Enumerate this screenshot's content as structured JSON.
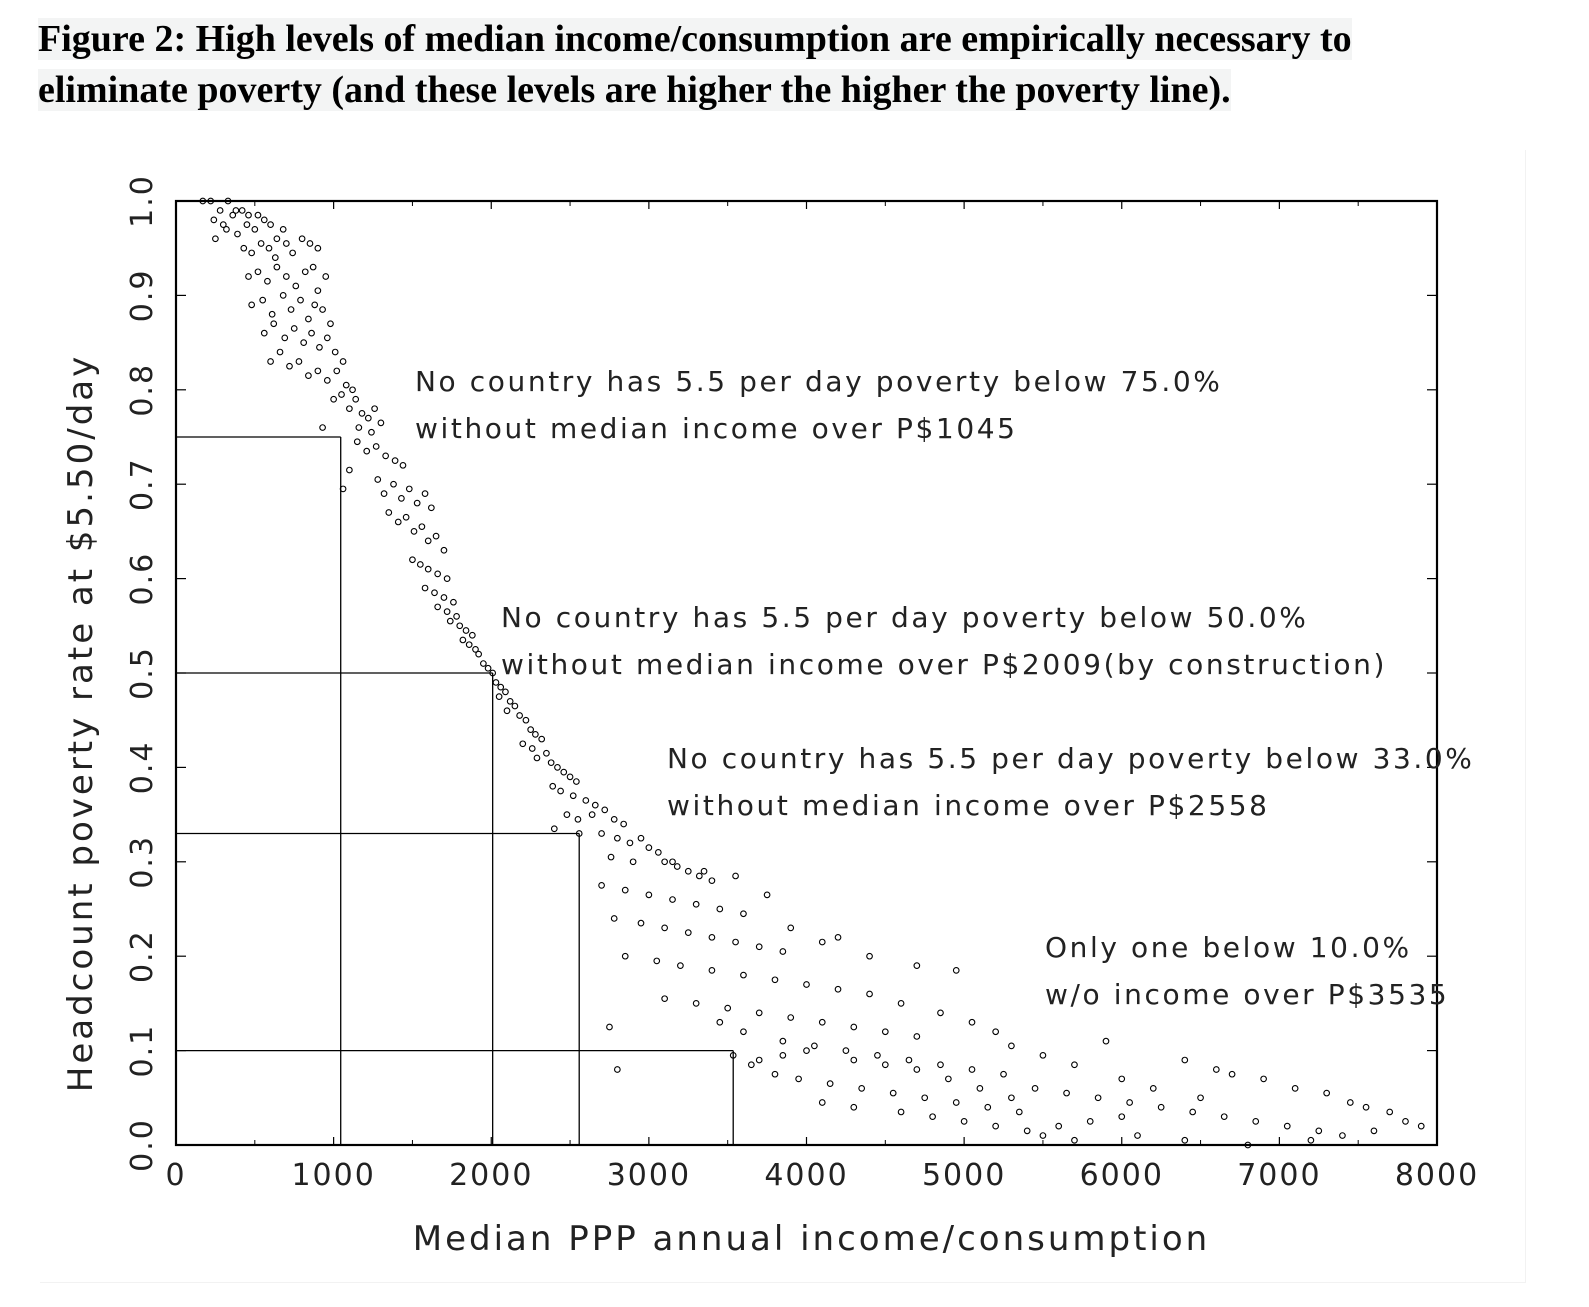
{
  "figure": {
    "title_line1": "Figure 2:  High levels of median income/consumption are empirically necessary to",
    "title_line2": "eliminate poverty (and these levels are higher the higher the poverty line)."
  },
  "chart_data": {
    "type": "scatter",
    "xlabel": "Median PPP annual income/consumption",
    "ylabel": "Headcount poverty rate at $5.50/day",
    "xlim": [
      0,
      8000
    ],
    "ylim": [
      0,
      1.0
    ],
    "x_ticks": [
      0,
      1000,
      2000,
      3000,
      4000,
      5000,
      6000,
      7000,
      8000
    ],
    "x_tick_labels": [
      "0",
      "1000",
      "2000",
      "3000",
      "4000",
      "5000",
      "6000",
      "7000",
      "8000"
    ],
    "y_ticks": [
      0,
      0.1,
      0.2,
      0.3,
      0.4,
      0.5,
      0.6,
      0.7,
      0.8,
      0.9,
      1.0
    ],
    "y_tick_labels": [
      "0.0",
      "0.1",
      "0.2",
      "0.3",
      "0.4",
      "0.5",
      "0.6",
      "0.7",
      "0.8",
      "0.9",
      "1.0"
    ],
    "thresholds": [
      {
        "poverty_rate": 0.75,
        "median_income": 1045,
        "line1": "No country has 5.5 per day poverty below 75.0%",
        "line2": "without median income over P$1045"
      },
      {
        "poverty_rate": 0.5,
        "median_income": 2009,
        "line1": "No country has 5.5 per day poverty below 50.0%",
        "line2": "without median income over P$2009(by construction)"
      },
      {
        "poverty_rate": 0.33,
        "median_income": 2558,
        "line1": "No country has 5.5 per day poverty below 33.0%",
        "line2": "without median income over P$2558"
      },
      {
        "poverty_rate": 0.1,
        "median_income": 3535,
        "line1": "Only one below 10.0%",
        "line2": "w/o income over P$3535"
      }
    ],
    "points": [
      [
        170,
        1.0
      ],
      [
        220,
        1.0
      ],
      [
        280,
        0.99
      ],
      [
        330,
        1.0
      ],
      [
        380,
        0.99
      ],
      [
        240,
        0.98
      ],
      [
        300,
        0.975
      ],
      [
        360,
        0.985
      ],
      [
        420,
        0.99
      ],
      [
        460,
        0.985
      ],
      [
        250,
        0.96
      ],
      [
        320,
        0.97
      ],
      [
        390,
        0.965
      ],
      [
        450,
        0.975
      ],
      [
        500,
        0.97
      ],
      [
        520,
        0.985
      ],
      [
        560,
        0.98
      ],
      [
        600,
        0.975
      ],
      [
        640,
        0.96
      ],
      [
        680,
        0.97
      ],
      [
        430,
        0.95
      ],
      [
        480,
        0.945
      ],
      [
        540,
        0.955
      ],
      [
        590,
        0.95
      ],
      [
        630,
        0.94
      ],
      [
        700,
        0.955
      ],
      [
        740,
        0.945
      ],
      [
        800,
        0.96
      ],
      [
        850,
        0.955
      ],
      [
        900,
        0.95
      ],
      [
        460,
        0.92
      ],
      [
        520,
        0.925
      ],
      [
        580,
        0.915
      ],
      [
        640,
        0.93
      ],
      [
        700,
        0.92
      ],
      [
        760,
        0.91
      ],
      [
        820,
        0.925
      ],
      [
        870,
        0.93
      ],
      [
        900,
        0.905
      ],
      [
        950,
        0.92
      ],
      [
        480,
        0.89
      ],
      [
        550,
        0.895
      ],
      [
        610,
        0.88
      ],
      [
        680,
        0.9
      ],
      [
        730,
        0.885
      ],
      [
        790,
        0.895
      ],
      [
        840,
        0.875
      ],
      [
        880,
        0.89
      ],
      [
        930,
        0.885
      ],
      [
        980,
        0.87
      ],
      [
        560,
        0.86
      ],
      [
        620,
        0.87
      ],
      [
        690,
        0.855
      ],
      [
        750,
        0.865
      ],
      [
        810,
        0.85
      ],
      [
        860,
        0.86
      ],
      [
        910,
        0.845
      ],
      [
        960,
        0.855
      ],
      [
        1010,
        0.84
      ],
      [
        1060,
        0.83
      ],
      [
        600,
        0.83
      ],
      [
        660,
        0.84
      ],
      [
        720,
        0.825
      ],
      [
        780,
        0.83
      ],
      [
        840,
        0.815
      ],
      [
        900,
        0.82
      ],
      [
        960,
        0.81
      ],
      [
        1020,
        0.82
      ],
      [
        1080,
        0.805
      ],
      [
        1120,
        0.8
      ],
      [
        1000,
        0.79
      ],
      [
        1050,
        0.795
      ],
      [
        1100,
        0.78
      ],
      [
        1140,
        0.79
      ],
      [
        1180,
        0.775
      ],
      [
        1220,
        0.77
      ],
      [
        1260,
        0.78
      ],
      [
        1300,
        0.765
      ],
      [
        1160,
        0.76
      ],
      [
        1240,
        0.755
      ],
      [
        930,
        0.76
      ],
      [
        1150,
        0.745
      ],
      [
        1210,
        0.735
      ],
      [
        1270,
        0.74
      ],
      [
        1330,
        0.73
      ],
      [
        1390,
        0.725
      ],
      [
        1440,
        0.72
      ],
      [
        1100,
        0.715
      ],
      [
        1060,
        0.695
      ],
      [
        1280,
        0.705
      ],
      [
        1320,
        0.69
      ],
      [
        1380,
        0.7
      ],
      [
        1430,
        0.685
      ],
      [
        1480,
        0.695
      ],
      [
        1530,
        0.68
      ],
      [
        1580,
        0.69
      ],
      [
        1620,
        0.675
      ],
      [
        1350,
        0.67
      ],
      [
        1410,
        0.66
      ],
      [
        1460,
        0.665
      ],
      [
        1510,
        0.65
      ],
      [
        1560,
        0.655
      ],
      [
        1600,
        0.64
      ],
      [
        1650,
        0.645
      ],
      [
        1700,
        0.63
      ],
      [
        1500,
        0.62
      ],
      [
        1550,
        0.615
      ],
      [
        1600,
        0.61
      ],
      [
        1660,
        0.605
      ],
      [
        1720,
        0.6
      ],
      [
        1580,
        0.59
      ],
      [
        1640,
        0.585
      ],
      [
        1700,
        0.58
      ],
      [
        1760,
        0.575
      ],
      [
        1660,
        0.57
      ],
      [
        1720,
        0.565
      ],
      [
        1780,
        0.56
      ],
      [
        1800,
        0.55
      ],
      [
        1840,
        0.545
      ],
      [
        1880,
        0.54
      ],
      [
        1740,
        0.555
      ],
      [
        1820,
        0.535
      ],
      [
        1860,
        0.53
      ],
      [
        1900,
        0.525
      ],
      [
        1920,
        0.52
      ],
      [
        1950,
        0.51
      ],
      [
        1980,
        0.505
      ],
      [
        2009,
        0.5
      ],
      [
        2030,
        0.49
      ],
      [
        2060,
        0.485
      ],
      [
        2090,
        0.48
      ],
      [
        2120,
        0.47
      ],
      [
        2050,
        0.475
      ],
      [
        2150,
        0.465
      ],
      [
        2100,
        0.46
      ],
      [
        2180,
        0.455
      ],
      [
        2220,
        0.45
      ],
      [
        2250,
        0.44
      ],
      [
        2280,
        0.435
      ],
      [
        2320,
        0.43
      ],
      [
        2200,
        0.425
      ],
      [
        2260,
        0.42
      ],
      [
        2350,
        0.415
      ],
      [
        2290,
        0.41
      ],
      [
        2380,
        0.405
      ],
      [
        2420,
        0.4
      ],
      [
        2460,
        0.395
      ],
      [
        2500,
        0.39
      ],
      [
        2540,
        0.385
      ],
      [
        2390,
        0.38
      ],
      [
        2440,
        0.375
      ],
      [
        2520,
        0.37
      ],
      [
        2600,
        0.365
      ],
      [
        2660,
        0.36
      ],
      [
        2720,
        0.355
      ],
      [
        2480,
        0.35
      ],
      [
        2550,
        0.345
      ],
      [
        2640,
        0.35
      ],
      [
        2780,
        0.345
      ],
      [
        2840,
        0.34
      ],
      [
        2400,
        0.335
      ],
      [
        2558,
        0.33
      ],
      [
        2700,
        0.33
      ],
      [
        2800,
        0.325
      ],
      [
        2880,
        0.32
      ],
      [
        2950,
        0.325
      ],
      [
        3000,
        0.315
      ],
      [
        3060,
        0.31
      ],
      [
        2760,
        0.305
      ],
      [
        2900,
        0.3
      ],
      [
        3100,
        0.3
      ],
      [
        3180,
        0.295
      ],
      [
        3250,
        0.29
      ],
      [
        3320,
        0.285
      ],
      [
        3400,
        0.28
      ],
      [
        2700,
        0.275
      ],
      [
        2850,
        0.27
      ],
      [
        3000,
        0.265
      ],
      [
        3150,
        0.26
      ],
      [
        3300,
        0.255
      ],
      [
        3450,
        0.25
      ],
      [
        3600,
        0.245
      ],
      [
        2780,
        0.24
      ],
      [
        2950,
        0.235
      ],
      [
        3100,
        0.23
      ],
      [
        3250,
        0.225
      ],
      [
        3400,
        0.22
      ],
      [
        3550,
        0.215
      ],
      [
        3700,
        0.21
      ],
      [
        3850,
        0.205
      ],
      [
        2850,
        0.2
      ],
      [
        3050,
        0.195
      ],
      [
        3200,
        0.19
      ],
      [
        3400,
        0.185
      ],
      [
        3600,
        0.18
      ],
      [
        3800,
        0.175
      ],
      [
        4000,
        0.17
      ],
      [
        4200,
        0.165
      ],
      [
        4400,
        0.16
      ],
      [
        3100,
        0.155
      ],
      [
        3300,
        0.15
      ],
      [
        3500,
        0.145
      ],
      [
        3700,
        0.14
      ],
      [
        3900,
        0.135
      ],
      [
        4100,
        0.13
      ],
      [
        4300,
        0.125
      ],
      [
        4500,
        0.12
      ],
      [
        4700,
        0.115
      ],
      [
        2750,
        0.125
      ],
      [
        3600,
        0.12
      ],
      [
        3850,
        0.11
      ],
      [
        4050,
        0.105
      ],
      [
        4250,
        0.1
      ],
      [
        4450,
        0.095
      ],
      [
        4650,
        0.09
      ],
      [
        4850,
        0.085
      ],
      [
        5050,
        0.08
      ],
      [
        5250,
        0.075
      ],
      [
        2800,
        0.08
      ],
      [
        3535,
        0.095
      ],
      [
        3650,
        0.085
      ],
      [
        3800,
        0.075
      ],
      [
        3950,
        0.07
      ],
      [
        4150,
        0.065
      ],
      [
        4350,
        0.06
      ],
      [
        4550,
        0.055
      ],
      [
        4750,
        0.05
      ],
      [
        4950,
        0.045
      ],
      [
        5150,
        0.04
      ],
      [
        5350,
        0.035
      ],
      [
        4100,
        0.045
      ],
      [
        4300,
        0.04
      ],
      [
        4600,
        0.035
      ],
      [
        4800,
        0.03
      ],
      [
        5000,
        0.025
      ],
      [
        5200,
        0.02
      ],
      [
        5400,
        0.015
      ],
      [
        5600,
        0.02
      ],
      [
        5800,
        0.025
      ],
      [
        6000,
        0.03
      ],
      [
        5450,
        0.06
      ],
      [
        5650,
        0.055
      ],
      [
        5850,
        0.05
      ],
      [
        6050,
        0.045
      ],
      [
        6250,
        0.04
      ],
      [
        6450,
        0.035
      ],
      [
        6650,
        0.03
      ],
      [
        6850,
        0.025
      ],
      [
        7050,
        0.02
      ],
      [
        7250,
        0.015
      ],
      [
        5900,
        0.11
      ],
      [
        6400,
        0.09
      ],
      [
        6600,
        0.08
      ],
      [
        6700,
        0.075
      ],
      [
        6900,
        0.07
      ],
      [
        7100,
        0.06
      ],
      [
        7300,
        0.055
      ],
      [
        7450,
        0.045
      ],
      [
        7550,
        0.04
      ],
      [
        7700,
        0.035
      ],
      [
        7800,
        0.025
      ],
      [
        7900,
        0.02
      ],
      [
        7600,
        0.015
      ],
      [
        7400,
        0.01
      ],
      [
        7200,
        0.005
      ],
      [
        6800,
        0.0
      ],
      [
        6400,
        0.005
      ],
      [
        6100,
        0.01
      ],
      [
        5700,
        0.005
      ],
      [
        5500,
        0.01
      ],
      [
        4950,
        0.185
      ],
      [
        4700,
        0.19
      ],
      [
        4400,
        0.2
      ],
      [
        4200,
        0.22
      ],
      [
        4100,
        0.215
      ],
      [
        3900,
        0.23
      ],
      [
        3750,
        0.265
      ],
      [
        3550,
        0.285
      ],
      [
        3350,
        0.29
      ],
      [
        3150,
        0.3
      ],
      [
        5200,
        0.12
      ],
      [
        5050,
        0.13
      ],
      [
        4850,
        0.14
      ],
      [
        4600,
        0.15
      ],
      [
        5300,
        0.105
      ],
      [
        5500,
        0.095
      ],
      [
        5700,
        0.085
      ],
      [
        6000,
        0.07
      ],
      [
        6200,
        0.06
      ],
      [
        6500,
        0.05
      ],
      [
        4700,
        0.08
      ],
      [
        4900,
        0.07
      ],
      [
        5100,
        0.06
      ],
      [
        5300,
        0.05
      ],
      [
        4500,
        0.085
      ],
      [
        4300,
        0.09
      ],
      [
        4000,
        0.1
      ],
      [
        3850,
        0.095
      ],
      [
        3700,
        0.09
      ],
      [
        3450,
        0.13
      ]
    ]
  }
}
